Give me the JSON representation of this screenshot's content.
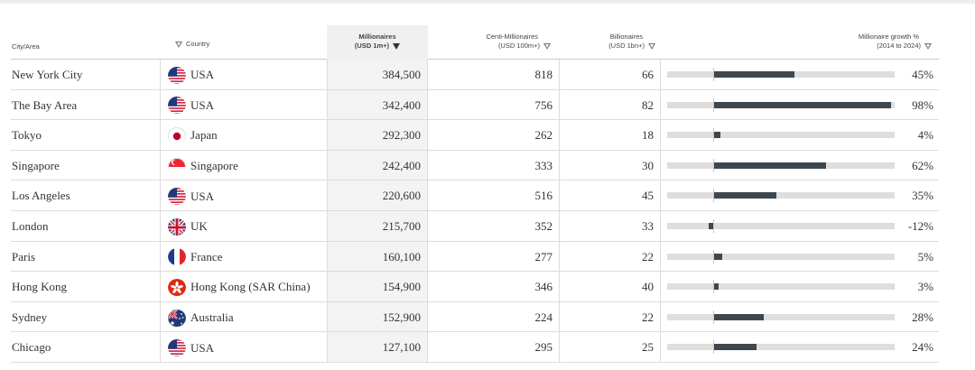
{
  "headers": {
    "city": "City/Area",
    "country": "Country",
    "millionaires_line1": "Millionaires",
    "millionaires_line2": "(USD 1m+)",
    "centi_line1": "Centi-Millionaires",
    "centi_line2": "(USD 100m+)",
    "billionaires_line1": "Billionaires",
    "billionaires_line2": "(USD 1bn+)",
    "growth_line1": "Millionaire growth %",
    "growth_line2": "(2014 to 2024)"
  },
  "sort": {
    "column": "millionaires",
    "direction": "descending"
  },
  "colors": {
    "bar_fill": "#3d4750",
    "bar_track": "#dedede",
    "highlight_column": "#f3f3f3"
  },
  "rows": [
    {
      "city": "New York City",
      "country": "USA",
      "flag": "us-flag-icon",
      "millionaires": "384,500",
      "centi": "818",
      "billionaires": "66",
      "growth_label": "45%",
      "growth": 45
    },
    {
      "city": "The Bay Area",
      "country": "USA",
      "flag": "us-flag-icon",
      "millionaires": "342,400",
      "centi": "756",
      "billionaires": "82",
      "growth_label": "98%",
      "growth": 98
    },
    {
      "city": "Tokyo",
      "country": "Japan",
      "flag": "jp-flag-icon",
      "millionaires": "292,300",
      "centi": "262",
      "billionaires": "18",
      "growth_label": "4%",
      "growth": 4
    },
    {
      "city": "Singapore",
      "country": "Singapore",
      "flag": "sg-flag-icon",
      "millionaires": "242,400",
      "centi": "333",
      "billionaires": "30",
      "growth_label": "62%",
      "growth": 62
    },
    {
      "city": "Los Angeles",
      "country": "USA",
      "flag": "us-flag-icon",
      "millionaires": "220,600",
      "centi": "516",
      "billionaires": "45",
      "growth_label": "35%",
      "growth": 35
    },
    {
      "city": "London",
      "country": "UK",
      "flag": "uk-flag-icon",
      "millionaires": "215,700",
      "centi": "352",
      "billionaires": "33",
      "growth_label": "-12%",
      "growth": -12
    },
    {
      "city": "Paris",
      "country": "France",
      "flag": "fr-flag-icon",
      "millionaires": "160,100",
      "centi": "277",
      "billionaires": "22",
      "growth_label": "5%",
      "growth": 5
    },
    {
      "city": "Hong Kong",
      "country": "Hong Kong (SAR China)",
      "flag": "hk-flag-icon",
      "millionaires": "154,900",
      "centi": "346",
      "billionaires": "40",
      "growth_label": "3%",
      "growth": 3
    },
    {
      "city": "Sydney",
      "country": "Australia",
      "flag": "au-flag-icon",
      "millionaires": "152,900",
      "centi": "224",
      "billionaires": "22",
      "growth_label": "28%",
      "growth": 28
    },
    {
      "city": "Chicago",
      "country": "USA",
      "flag": "us-flag-icon",
      "millionaires": "127,100",
      "centi": "295",
      "billionaires": "25",
      "growth_label": "24%",
      "growth": 24
    }
  ]
}
